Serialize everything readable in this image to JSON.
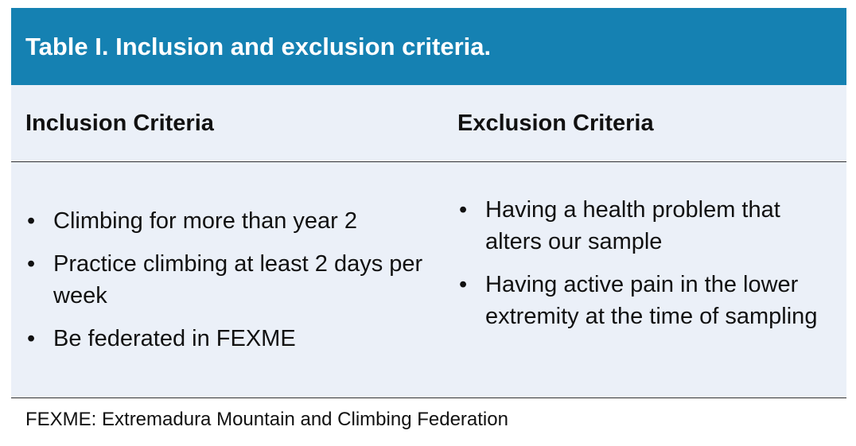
{
  "table": {
    "title": "Table I. Inclusion and exclusion criteria.",
    "columns": [
      "Inclusion Criteria",
      "Exclusion Criteria"
    ],
    "inclusion": [
      "Climbing for more than year 2",
      "Practice climbing at least 2 days per week",
      "Be federated in FEXME"
    ],
    "exclusion": [
      "Having a health problem that alters our sample",
      "Having active pain in the lower extremity at the time of sampling"
    ],
    "footnote": "FEXME: Extremadura Mountain and Climbing Federation"
  },
  "colors": {
    "header": "#1581b2",
    "row_bg": "#ebf0f8"
  }
}
